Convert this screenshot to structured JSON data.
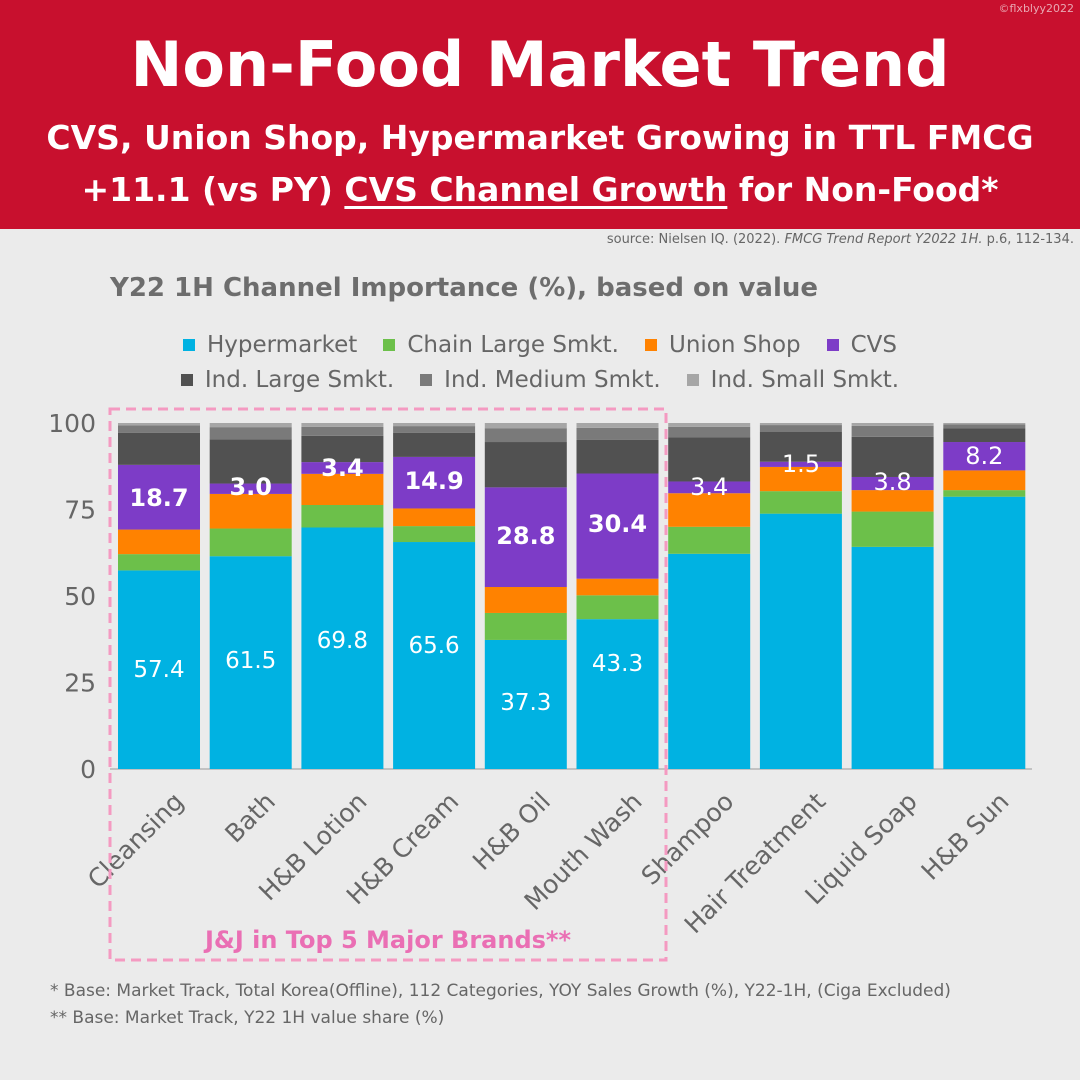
{
  "watermark": "©flxblyy2022",
  "header": {
    "title": "Non-Food Market Trend",
    "subtitle1": "CVS, Union Shop, Hypermarket Growing in TTL FMCG",
    "subtitle2_pre": "+11.1 (vs PY) ",
    "subtitle2_underlined": "CVS Channel Growth",
    "subtitle2_post": " for Non-Food*"
  },
  "source": {
    "prefix": "source: Nielsen IQ. (2022). ",
    "italic": "FMCG Trend Report Y2022 1H.",
    "suffix": " p.6, 112-134."
  },
  "highlight_label": "J&J in Top 5 Major Brands**",
  "footnotes": {
    "f1": "* Base: Market Track, Total Korea(Offline), 112 Categories, YOY Sales Growth (%), Y22-1H, (Ciga Excluded)",
    "f2": "** Base: Market Track, Y22 1H value share (%)"
  },
  "chart_data": {
    "type": "bar",
    "stacked": true,
    "title": "Y22 1H Channel Importance (%), based on value",
    "ylim": [
      0,
      100
    ],
    "yticks": [
      0,
      25,
      50,
      75,
      100
    ],
    "grid": false,
    "legend_position": "top",
    "categories": [
      "Cleansing",
      "Bath",
      "H&B Lotion",
      "H&B Cream",
      "H&B Oil",
      "Mouth Wash",
      "Shampoo",
      "Hair Treatment",
      "Liquid Soap",
      "H&B Sun"
    ],
    "series": [
      {
        "name": "Hypermarket",
        "color": "#00b2e2",
        "values": [
          57.4,
          61.5,
          69.8,
          65.6,
          37.3,
          43.3,
          62.2,
          73.8,
          64.2,
          78.7
        ]
      },
      {
        "name": "Chain Large Smkt.",
        "color": "#6cc04a",
        "values": [
          4.7,
          8.0,
          6.5,
          4.6,
          7.8,
          6.9,
          7.8,
          6.5,
          10.2,
          1.9
        ]
      },
      {
        "name": "Union Shop",
        "color": "#ff8200",
        "values": [
          7.1,
          10.0,
          9.0,
          5.1,
          7.5,
          4.8,
          9.7,
          7.0,
          6.2,
          5.7
        ]
      },
      {
        "name": "CVS",
        "color": "#7d3cc7",
        "values": [
          18.7,
          3.0,
          3.4,
          14.9,
          28.8,
          30.4,
          3.4,
          1.5,
          3.8,
          8.2
        ]
      },
      {
        "name": "Ind. Large Smkt.",
        "color": "#515151",
        "values": [
          9.3,
          12.8,
          7.6,
          7.0,
          13.1,
          9.7,
          12.8,
          8.6,
          11.6,
          4.0
        ]
      },
      {
        "name": "Ind. Medium Smkt.",
        "color": "#7a7a7a",
        "values": [
          2.1,
          3.5,
          2.6,
          1.9,
          4.0,
          3.5,
          3.0,
          2.0,
          3.2,
          1.1
        ]
      },
      {
        "name": "Ind. Small Smkt.",
        "color": "#a6a6a6",
        "values": [
          0.7,
          1.2,
          1.1,
          0.9,
          1.5,
          1.4,
          1.1,
          0.6,
          0.8,
          0.4
        ]
      }
    ],
    "data_labels": {
      "Hypermarket": [
        "57.4",
        "61.5",
        "69.8",
        "65.6",
        "37.3",
        "43.3",
        null,
        null,
        null,
        null
      ],
      "CVS": [
        "18.7",
        "3.0",
        "3.4",
        "14.9",
        "28.8",
        "30.4",
        "3.4",
        "1.5",
        "3.8",
        "8.2"
      ]
    },
    "highlighted_categories": [
      "Cleansing",
      "Bath",
      "H&B Lotion",
      "H&B Cream",
      "H&B Oil",
      "Mouth Wash"
    ]
  }
}
